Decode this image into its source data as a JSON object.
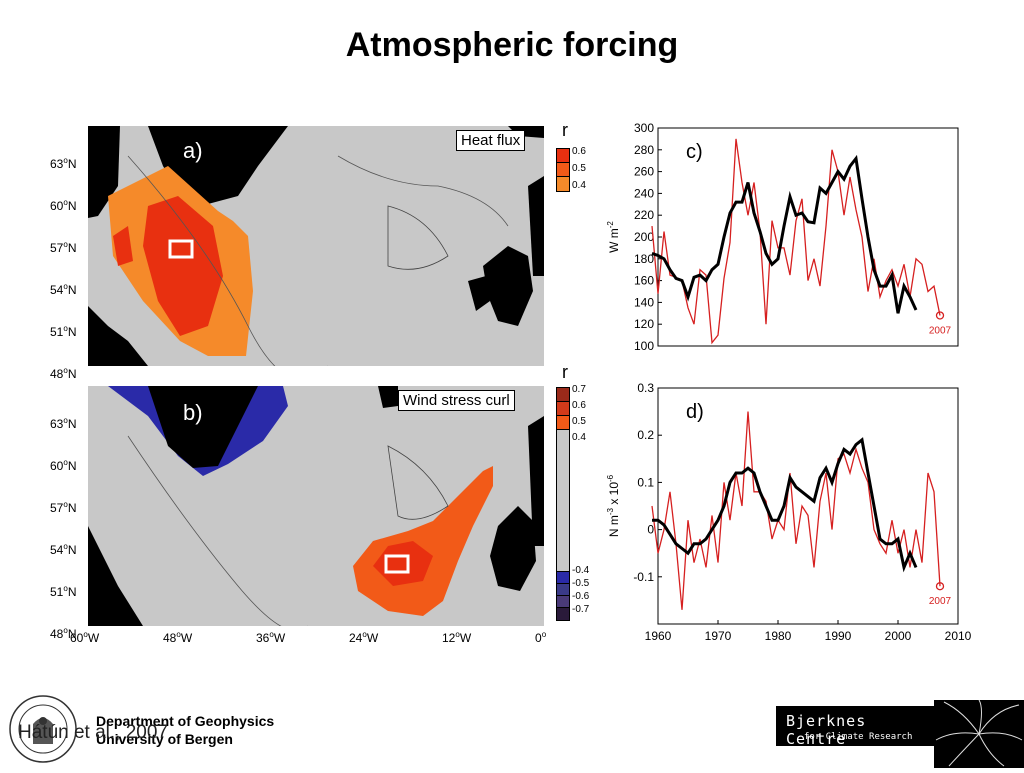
{
  "slide": {
    "title": "Atmospheric forcing"
  },
  "map_a": {
    "panel": "a)",
    "label": "Heat flux",
    "cbar_title": "r",
    "cbar_ticks": [
      "0.6",
      "0.5",
      "0.4"
    ],
    "colors": {
      "high": "#e83010",
      "mid": "#f25a18",
      "low": "#f58a2a"
    }
  },
  "map_b": {
    "panel": "b)",
    "label": "Wind stress curl",
    "cbar_title": "r",
    "cbar_ticks": [
      "0.7",
      "0.6",
      "0.5",
      "0.4",
      "-0.4",
      "-0.5",
      "-0.6",
      "-0.7"
    ]
  },
  "map_axes": {
    "lat_labels": [
      "63",
      "60",
      "57",
      "54",
      "51",
      "48"
    ],
    "lon_labels": [
      "60",
      "48",
      "36",
      "24",
      "12",
      "0"
    ],
    "lat_unit": "N",
    "lon_unit": "W"
  },
  "chart_data": [
    {
      "type": "line",
      "panel": "c)",
      "ylabel": "W m",
      "ylabel_exp": "-2",
      "ylim": [
        100,
        300
      ],
      "yticks": [
        100,
        120,
        140,
        160,
        180,
        200,
        220,
        240,
        260,
        280,
        300
      ],
      "xlim": [
        1960,
        2010
      ],
      "annotation": "2007",
      "series": [
        {
          "color": "#d62020",
          "x": [
            1959,
            1960,
            1961,
            1962,
            1963,
            1964,
            1965,
            1966,
            1967,
            1968,
            1969,
            1970,
            1971,
            1972,
            1973,
            1974,
            1975,
            1976,
            1977,
            1978,
            1979,
            1980,
            1981,
            1982,
            1983,
            1984,
            1985,
            1986,
            1987,
            1988,
            1989,
            1990,
            1991,
            1992,
            1993,
            1994,
            1995,
            1996,
            1997,
            1998,
            1999,
            2000,
            2001,
            2002,
            2003,
            2004,
            2005,
            2006,
            2007
          ],
          "values": [
            210,
            148,
            205,
            165,
            163,
            160,
            135,
            120,
            170,
            165,
            103,
            110,
            162,
            195,
            290,
            250,
            220,
            250,
            205,
            120,
            215,
            190,
            190,
            165,
            215,
            235,
            160,
            180,
            155,
            210,
            280,
            260,
            220,
            255,
            225,
            200,
            150,
            180,
            145,
            160,
            170,
            155,
            175,
            145,
            180,
            175,
            150,
            155,
            128
          ]
        },
        {
          "color": "#000000",
          "x": [
            1959,
            1960,
            1961,
            1962,
            1963,
            1964,
            1965,
            1966,
            1967,
            1968,
            1969,
            1970,
            1971,
            1972,
            1973,
            1974,
            1975,
            1976,
            1977,
            1978,
            1979,
            1980,
            1981,
            1982,
            1983,
            1984,
            1985,
            1986,
            1987,
            1988,
            1989,
            1990,
            1991,
            1992,
            1993,
            1994,
            1995,
            1996,
            1997,
            1998,
            1999,
            2000,
            2001,
            2002,
            2003
          ],
          "values": [
            185,
            183,
            180,
            170,
            162,
            160,
            145,
            163,
            165,
            160,
            170,
            175,
            200,
            222,
            232,
            232,
            250,
            222,
            205,
            185,
            175,
            180,
            210,
            237,
            220,
            222,
            214,
            213,
            245,
            240,
            250,
            260,
            253,
            265,
            272,
            235,
            200,
            170,
            155,
            155,
            165,
            130,
            155,
            145,
            133
          ]
        }
      ]
    },
    {
      "type": "line",
      "panel": "d)",
      "ylabel": "N m",
      "ylabel_exp": "-3",
      "ylabel_suffix": "x 10",
      "ylabel_suffix_exp": "-6",
      "ylim": [
        -0.2,
        0.3
      ],
      "yticks": [
        -0.1,
        0,
        0.1,
        0.2,
        0.3
      ],
      "xlim": [
        1960,
        2010
      ],
      "xticks": [
        1960,
        1970,
        1980,
        1990,
        2000,
        2010
      ],
      "annotation": "2007",
      "series": [
        {
          "color": "#d62020",
          "x": [
            1959,
            1960,
            1961,
            1962,
            1963,
            1964,
            1965,
            1966,
            1967,
            1968,
            1969,
            1970,
            1971,
            1972,
            1973,
            1974,
            1975,
            1976,
            1977,
            1978,
            1979,
            1980,
            1981,
            1982,
            1983,
            1984,
            1985,
            1986,
            1987,
            1988,
            1989,
            1990,
            1991,
            1992,
            1993,
            1994,
            1995,
            1996,
            1997,
            1998,
            1999,
            2000,
            2001,
            2002,
            2003,
            2004,
            2005,
            2006,
            2007
          ],
          "values": [
            0.05,
            -0.05,
            0.0,
            0.08,
            -0.03,
            -0.17,
            0.02,
            -0.07,
            -0.02,
            -0.08,
            0.03,
            -0.07,
            0.1,
            0.02,
            0.12,
            0.05,
            0.25,
            0.08,
            0.08,
            0.06,
            -0.02,
            0.02,
            0.0,
            0.12,
            -0.03,
            0.05,
            0.03,
            -0.08,
            0.06,
            0.12,
            0.0,
            0.15,
            0.16,
            0.12,
            0.17,
            0.13,
            0.1,
            0.0,
            -0.03,
            -0.05,
            0.02,
            -0.05,
            0.0,
            -0.08,
            0.0,
            -0.07,
            0.12,
            0.08,
            -0.12
          ]
        },
        {
          "color": "#000000",
          "x": [
            1959,
            1960,
            1961,
            1962,
            1963,
            1964,
            1965,
            1966,
            1967,
            1968,
            1969,
            1970,
            1971,
            1972,
            1973,
            1974,
            1975,
            1976,
            1977,
            1978,
            1979,
            1980,
            1981,
            1982,
            1983,
            1984,
            1985,
            1986,
            1987,
            1988,
            1989,
            1990,
            1991,
            1992,
            1993,
            1994,
            1995,
            1996,
            1997,
            1998,
            1999,
            2000,
            2001,
            2002,
            2003
          ],
          "values": [
            0.02,
            0.02,
            0.01,
            -0.01,
            -0.03,
            -0.04,
            -0.05,
            -0.03,
            -0.03,
            -0.02,
            0.0,
            0.02,
            0.05,
            0.1,
            0.12,
            0.12,
            0.13,
            0.12,
            0.08,
            0.05,
            0.02,
            0.02,
            0.05,
            0.11,
            0.09,
            0.08,
            0.07,
            0.06,
            0.11,
            0.13,
            0.1,
            0.14,
            0.17,
            0.16,
            0.18,
            0.19,
            0.12,
            0.05,
            -0.02,
            -0.03,
            -0.03,
            -0.02,
            -0.08,
            -0.05,
            -0.08
          ]
        }
      ]
    }
  ],
  "footer": {
    "dept_line1": "Department of Geophysics",
    "dept_line2": "University of Bergen",
    "citation": "Hátún et al., 2007",
    "logo_main": "Bjerknes Centre",
    "logo_sub": "for Climate Research"
  }
}
